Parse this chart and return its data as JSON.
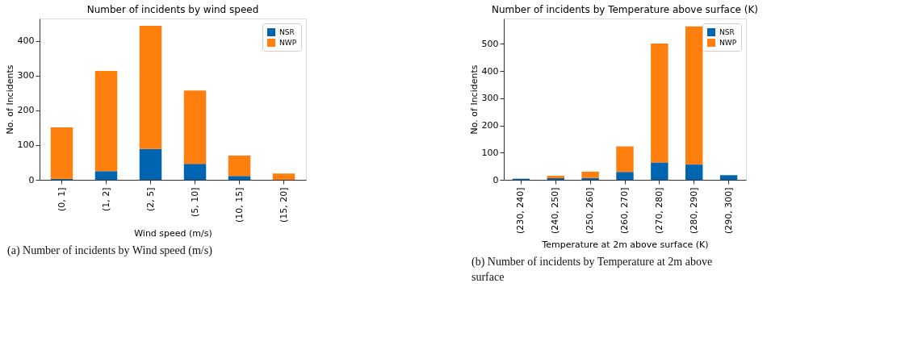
{
  "chart_data": [
    {
      "type": "bar",
      "title": "Number of incidents by wind speed",
      "xlabel": "Wind speed (m/s)",
      "ylabel": "No. of Incidents",
      "categories": [
        "(0, 1]",
        "(1, 2]",
        "(2, 5]",
        "(5, 10]",
        "(10, 15]",
        "(15, 20]"
      ],
      "series": [
        {
          "name": "NSR",
          "color": "#0065b0",
          "values": [
            3,
            25,
            89,
            46,
            11,
            0
          ]
        },
        {
          "name": "NWP",
          "color": "#ff7f0e",
          "values": [
            148,
            288,
            354,
            211,
            59,
            18
          ]
        }
      ],
      "stacked": true,
      "ylim": [
        0,
        464
      ],
      "yticks": [
        0,
        100,
        200,
        300,
        400
      ],
      "grid": false,
      "legend": "top right",
      "annotations": [
        "(a) Number of incidents by Wind speed (m/s)"
      ]
    },
    {
      "type": "bar",
      "title": "Number of incidents by Temperature above surface (K)",
      "xlabel": "Temperature at 2m above surface (K)",
      "ylabel": "No. of Incidents",
      "categories": [
        "(230, 240]",
        "(240, 250]",
        "(250, 260]",
        "(260, 270]",
        "(270, 280]",
        "(280, 290]",
        "(290, 300]"
      ],
      "series": [
        {
          "name": "NSR",
          "color": "#0065b0",
          "values": [
            4,
            6,
            7,
            29,
            64,
            56,
            17
          ]
        },
        {
          "name": "NWP",
          "color": "#ff7f0e",
          "values": [
            0,
            9,
            23,
            94,
            437,
            508,
            0
          ]
        }
      ],
      "stacked": true,
      "ylim": [
        0,
        593
      ],
      "yticks": [
        0,
        100,
        200,
        300,
        400,
        500
      ],
      "grid": false,
      "legend": "top right",
      "annotations": [
        "(b) Number of incidents by Temperature at 2m above surface"
      ]
    }
  ]
}
